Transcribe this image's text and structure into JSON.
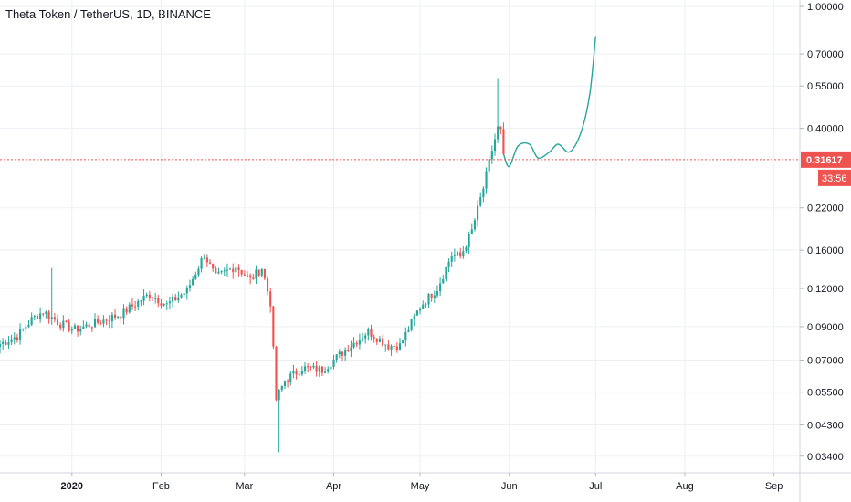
{
  "chart_data": {
    "type": "candlestick",
    "title": "Theta Token / TetherUS, 1D, BINANCE",
    "y_scale": "log",
    "y_ticks": [
      "1.00000",
      "0.70000",
      "0.55000",
      "0.40000",
      "0.22000",
      "0.16000",
      "0.12000",
      "0.09000",
      "0.07000",
      "0.05500",
      "0.04300",
      "0.03400"
    ],
    "x_ticks": [
      "2020",
      "Feb",
      "Mar",
      "Apr",
      "May",
      "Jun",
      "Jul",
      "Aug",
      "Sep"
    ],
    "last_price": {
      "value": 0.31617,
      "label": "0.31617",
      "countdown": "33:56"
    },
    "x_range": [
      "2019-12-07",
      "2020-09-10"
    ],
    "y_range": [
      0.03,
      1.05
    ],
    "colors": {
      "up": "#26a69a",
      "down": "#ef5350",
      "projection": "#26a69a",
      "price_line": "#ef5350"
    },
    "anchors": [
      {
        "date": "2019-12-07",
        "price": 0.079
      },
      {
        "date": "2019-12-13",
        "price": 0.084
      },
      {
        "date": "2019-12-18",
        "price": 0.095
      },
      {
        "date": "2019-12-22",
        "price": 0.101
      },
      {
        "date": "2019-12-28",
        "price": 0.092
      },
      {
        "date": "2020-01-02",
        "price": 0.088
      },
      {
        "date": "2020-01-10",
        "price": 0.093
      },
      {
        "date": "2020-01-18",
        "price": 0.099
      },
      {
        "date": "2020-01-28",
        "price": 0.115
      },
      {
        "date": "2020-02-03",
        "price": 0.106
      },
      {
        "date": "2020-02-10",
        "price": 0.118
      },
      {
        "date": "2020-02-16",
        "price": 0.155
      },
      {
        "date": "2020-02-20",
        "price": 0.13
      },
      {
        "date": "2020-02-27",
        "price": 0.142
      },
      {
        "date": "2020-03-03",
        "price": 0.128
      },
      {
        "date": "2020-03-07",
        "price": 0.14
      },
      {
        "date": "2020-03-10",
        "price": 0.108
      },
      {
        "date": "2020-03-12",
        "price": 0.052
      },
      {
        "date": "2020-03-15",
        "price": 0.06
      },
      {
        "date": "2020-03-21",
        "price": 0.066
      },
      {
        "date": "2020-03-28",
        "price": 0.065
      },
      {
        "date": "2020-04-06",
        "price": 0.077
      },
      {
        "date": "2020-04-13",
        "price": 0.087
      },
      {
        "date": "2020-04-20",
        "price": 0.078
      },
      {
        "date": "2020-04-24",
        "price": 0.078
      },
      {
        "date": "2020-05-01",
        "price": 0.105
      },
      {
        "date": "2020-05-07",
        "price": 0.12
      },
      {
        "date": "2020-05-12",
        "price": 0.155
      },
      {
        "date": "2020-05-15",
        "price": 0.152
      },
      {
        "date": "2020-05-19",
        "price": 0.185
      },
      {
        "date": "2020-05-23",
        "price": 0.255
      },
      {
        "date": "2020-05-26",
        "price": 0.34
      },
      {
        "date": "2020-05-28",
        "price": 0.4
      },
      {
        "date": "2020-05-29",
        "price": 0.39
      },
      {
        "date": "2020-05-30",
        "price": 0.32
      }
    ],
    "projection": [
      {
        "date": "2020-05-30",
        "price": 0.33
      },
      {
        "date": "2020-06-01",
        "price": 0.3
      },
      {
        "date": "2020-06-04",
        "price": 0.35
      },
      {
        "date": "2020-06-08",
        "price": 0.355
      },
      {
        "date": "2020-06-11",
        "price": 0.32
      },
      {
        "date": "2020-06-15",
        "price": 0.335
      },
      {
        "date": "2020-06-18",
        "price": 0.355
      },
      {
        "date": "2020-06-22",
        "price": 0.335
      },
      {
        "date": "2020-06-26",
        "price": 0.39
      },
      {
        "date": "2020-06-29",
        "price": 0.52
      },
      {
        "date": "2020-07-01",
        "price": 0.8
      }
    ]
  }
}
